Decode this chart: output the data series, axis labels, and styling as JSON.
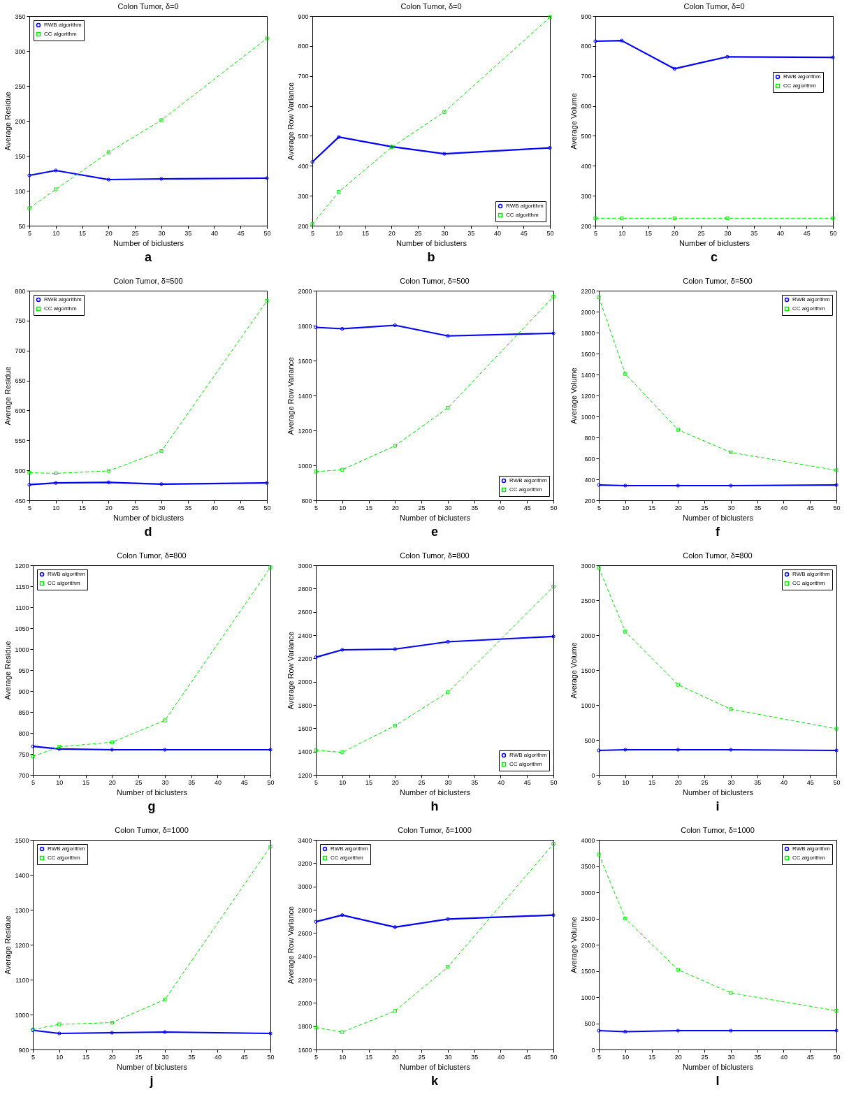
{
  "chart_data": [
    {
      "type": "line",
      "title": "Colon Tumor, δ=0",
      "xlabel": "Number of biclusters",
      "ylabel": "Average Residue",
      "annotations": [
        "a"
      ],
      "x": [
        5,
        10,
        20,
        30,
        50
      ],
      "xlim": [
        5,
        50
      ],
      "xticks": [
        5,
        10,
        15,
        20,
        25,
        30,
        35,
        40,
        45,
        50
      ],
      "ylim": [
        50,
        350
      ],
      "yticks": [
        50,
        100,
        150,
        200,
        250,
        300,
        350
      ],
      "legend": "top left",
      "series": [
        {
          "name": "RWB algorithm",
          "color": "#0000ff",
          "marker": "circle",
          "line_style": "solid",
          "values": [
            122,
            129,
            116,
            117,
            118
          ]
        },
        {
          "name": "CC algorithm",
          "color": "#00ee00",
          "marker": "square",
          "line_style": "dashed",
          "values": [
            75,
            102,
            155,
            201,
            318
          ]
        }
      ]
    },
    {
      "type": "line",
      "title": "Colon Tumor, δ=0",
      "xlabel": "Number of biclusters",
      "ylabel": "Average Row Variance",
      "annotations": [
        "b"
      ],
      "x": [
        5,
        10,
        20,
        30,
        50
      ],
      "xlim": [
        5,
        50
      ],
      "xticks": [
        5,
        10,
        15,
        20,
        25,
        30,
        35,
        40,
        45,
        50
      ],
      "ylim": [
        200,
        900
      ],
      "yticks": [
        200,
        300,
        400,
        500,
        600,
        700,
        800,
        900
      ],
      "legend": "bottom right",
      "series": [
        {
          "name": "RWB algorithm",
          "color": "#0000ff",
          "marker": "circle",
          "line_style": "solid",
          "values": [
            413,
            496,
            464,
            440,
            460
          ]
        },
        {
          "name": "CC algorithm",
          "color": "#00ee00",
          "marker": "square",
          "line_style": "dashed",
          "values": [
            205,
            313,
            462,
            580,
            896
          ]
        }
      ]
    },
    {
      "type": "line",
      "title": "Colon Tumor, δ=0",
      "xlabel": "Number of biclusters",
      "ylabel": "Average Volume",
      "annotations": [
        "c"
      ],
      "x": [
        5,
        10,
        20,
        30,
        50
      ],
      "xlim": [
        5,
        50
      ],
      "xticks": [
        5,
        10,
        15,
        20,
        25,
        30,
        35,
        40,
        45,
        50
      ],
      "ylim": [
        200,
        900
      ],
      "yticks": [
        200,
        300,
        400,
        500,
        600,
        700,
        800,
        900
      ],
      "legend": "right",
      "series": [
        {
          "name": "RWB algorithm",
          "color": "#0000ff",
          "marker": "circle",
          "line_style": "solid",
          "values": [
            816,
            818,
            724,
            764,
            762
          ]
        },
        {
          "name": "CC algorithm",
          "color": "#00ee00",
          "marker": "square",
          "line_style": "dashed",
          "values": [
            225,
            225,
            225,
            225,
            225
          ]
        }
      ]
    },
    {
      "type": "line",
      "title": "Colon Tumor, δ=500",
      "xlabel": "Number of biclusters",
      "ylabel": "Average Residue",
      "annotations": [
        "d"
      ],
      "x": [
        5,
        10,
        20,
        30,
        50
      ],
      "xlim": [
        5,
        50
      ],
      "xticks": [
        5,
        10,
        15,
        20,
        25,
        30,
        35,
        40,
        45,
        50
      ],
      "ylim": [
        450,
        800
      ],
      "yticks": [
        450,
        500,
        550,
        600,
        650,
        700,
        750,
        800
      ],
      "legend": "top left",
      "series": [
        {
          "name": "RWB algorithm",
          "color": "#0000ff",
          "marker": "circle",
          "line_style": "solid",
          "values": [
            476,
            479,
            480,
            477,
            479
          ]
        },
        {
          "name": "CC algorithm",
          "color": "#00ee00",
          "marker": "square",
          "line_style": "dashed",
          "values": [
            496,
            495,
            499,
            532,
            783
          ]
        }
      ]
    },
    {
      "type": "line",
      "title": "Colon Tumor, δ=500",
      "xlabel": "Number of biclusters",
      "ylabel": "Average Row Variance",
      "annotations": [
        "e"
      ],
      "x": [
        5,
        10,
        20,
        30,
        50
      ],
      "xlim": [
        5,
        50
      ],
      "xticks": [
        5,
        10,
        15,
        20,
        25,
        30,
        35,
        40,
        45,
        50
      ],
      "ylim": [
        800,
        2000
      ],
      "yticks": [
        800,
        1000,
        1200,
        1400,
        1600,
        1800,
        2000
      ],
      "legend": "bottom right",
      "series": [
        {
          "name": "RWB algorithm",
          "color": "#0000ff",
          "marker": "circle",
          "line_style": "solid",
          "values": [
            1790,
            1782,
            1802,
            1741,
            1756
          ]
        },
        {
          "name": "CC algorithm",
          "color": "#00ee00",
          "marker": "square",
          "line_style": "dashed",
          "values": [
            964,
            975,
            1112,
            1329,
            1966
          ]
        }
      ]
    },
    {
      "type": "line",
      "title": "Colon Tumor, δ=500",
      "xlabel": "Number of biclusters",
      "ylabel": "Average Volume",
      "annotations": [
        "f"
      ],
      "x": [
        5,
        10,
        20,
        30,
        50
      ],
      "xlim": [
        5,
        50
      ],
      "xticks": [
        5,
        10,
        15,
        20,
        25,
        30,
        35,
        40,
        45,
        50
      ],
      "ylim": [
        200,
        2200
      ],
      "yticks": [
        200,
        400,
        600,
        800,
        1000,
        1200,
        1400,
        1600,
        1800,
        2000,
        2200
      ],
      "legend": "top right",
      "series": [
        {
          "name": "RWB algorithm",
          "color": "#0000ff",
          "marker": "circle",
          "line_style": "solid",
          "values": [
            346,
            340,
            340,
            340,
            346
          ]
        },
        {
          "name": "CC algorithm",
          "color": "#00ee00",
          "marker": "square",
          "line_style": "dashed",
          "values": [
            2137,
            1406,
            873,
            657,
            486
          ]
        }
      ]
    },
    {
      "type": "line",
      "title": "Colon Tumor, δ=800",
      "xlabel": "Number of biclusters",
      "ylabel": "Average Residue",
      "annotations": [
        "g"
      ],
      "x": [
        5,
        10,
        20,
        30,
        50
      ],
      "xlim": [
        5,
        50
      ],
      "xticks": [
        5,
        10,
        15,
        20,
        25,
        30,
        35,
        40,
        45,
        50
      ],
      "ylim": [
        700,
        1200
      ],
      "yticks": [
        700,
        750,
        800,
        850,
        900,
        950,
        1000,
        1050,
        1100,
        1150,
        1200
      ],
      "legend": "top left",
      "series": [
        {
          "name": "RWB algorithm",
          "color": "#0000ff",
          "marker": "circle",
          "line_style": "solid",
          "values": [
            768,
            762,
            760,
            760,
            760
          ]
        },
        {
          "name": "CC algorithm",
          "color": "#00ee00",
          "marker": "square",
          "line_style": "dashed",
          "values": [
            744,
            767,
            778,
            830,
            1195
          ]
        }
      ]
    },
    {
      "type": "line",
      "title": "Colon Tumor, δ=800",
      "xlabel": "Number of biclusters",
      "ylabel": "Average Row Variance",
      "annotations": [
        "h"
      ],
      "x": [
        5,
        10,
        20,
        30,
        50
      ],
      "xlim": [
        5,
        50
      ],
      "xticks": [
        5,
        10,
        15,
        20,
        25,
        30,
        35,
        40,
        45,
        50
      ],
      "ylim": [
        1200,
        3000
      ],
      "yticks": [
        1200,
        1400,
        1600,
        1800,
        2000,
        2200,
        2400,
        2600,
        2800,
        3000
      ],
      "legend": "bottom right",
      "series": [
        {
          "name": "RWB algorithm",
          "color": "#0000ff",
          "marker": "circle",
          "line_style": "solid",
          "values": [
            2210,
            2274,
            2280,
            2343,
            2389
          ]
        },
        {
          "name": "CC algorithm",
          "color": "#00ee00",
          "marker": "square",
          "line_style": "dashed",
          "values": [
            1411,
            1394,
            1623,
            1909,
            2817
          ]
        }
      ]
    },
    {
      "type": "line",
      "title": "Colon Tumor, δ=800",
      "xlabel": "Number of biclusters",
      "ylabel": "Average Volume",
      "annotations": [
        "i"
      ],
      "x": [
        5,
        10,
        20,
        30,
        50
      ],
      "xlim": [
        5,
        50
      ],
      "xticks": [
        5,
        10,
        15,
        20,
        25,
        30,
        35,
        40,
        45,
        50
      ],
      "ylim": [
        0,
        3000
      ],
      "yticks": [
        0,
        500,
        1000,
        1500,
        2000,
        2500,
        3000
      ],
      "legend": "top right",
      "series": [
        {
          "name": "RWB algorithm",
          "color": "#0000ff",
          "marker": "circle",
          "line_style": "solid",
          "values": [
            350,
            360,
            360,
            360,
            350
          ]
        },
        {
          "name": "CC algorithm",
          "color": "#00ee00",
          "marker": "square",
          "line_style": "dashed",
          "values": [
            2960,
            2050,
            1290,
            940,
            660
          ]
        }
      ]
    },
    {
      "type": "line",
      "title": "Colon Tumor, δ=1000",
      "xlabel": "Number of biclusters",
      "ylabel": "Average Residue",
      "annotations": [
        "j"
      ],
      "x": [
        5,
        10,
        20,
        30,
        50
      ],
      "xlim": [
        5,
        50
      ],
      "xticks": [
        5,
        10,
        15,
        20,
        25,
        30,
        35,
        40,
        45,
        50
      ],
      "ylim": [
        900,
        1500
      ],
      "yticks": [
        900,
        1000,
        1100,
        1200,
        1300,
        1400,
        1500
      ],
      "legend": "top left",
      "series": [
        {
          "name": "RWB algorithm",
          "color": "#0000ff",
          "marker": "circle",
          "line_style": "solid",
          "values": [
            955,
            946,
            948,
            950,
            946
          ]
        },
        {
          "name": "CC algorithm",
          "color": "#00ee00",
          "marker": "square",
          "line_style": "dashed",
          "values": [
            957,
            972,
            977,
            1043,
            1481
          ]
        }
      ]
    },
    {
      "type": "line",
      "title": "Colon Tumor, δ=1000",
      "xlabel": "Number of biclusters",
      "ylabel": "Average Row Variance",
      "annotations": [
        "k"
      ],
      "x": [
        5,
        10,
        20,
        30,
        50
      ],
      "xlim": [
        5,
        50
      ],
      "xticks": [
        5,
        10,
        15,
        20,
        25,
        30,
        35,
        40,
        45,
        50
      ],
      "ylim": [
        1600,
        3400
      ],
      "yticks": [
        1600,
        1800,
        2000,
        2200,
        2400,
        2600,
        2800,
        3000,
        3200,
        3400
      ],
      "legend": "top left",
      "series": [
        {
          "name": "RWB algorithm",
          "color": "#0000ff",
          "marker": "circle",
          "line_style": "solid",
          "values": [
            2697,
            2754,
            2651,
            2720,
            2754
          ]
        },
        {
          "name": "CC algorithm",
          "color": "#00ee00",
          "marker": "square",
          "line_style": "dashed",
          "values": [
            1789,
            1749,
            1931,
            2309,
            3366
          ]
        }
      ]
    },
    {
      "type": "line",
      "title": "Colon Tumor, δ=1000",
      "xlabel": "Number of biclusters",
      "ylabel": "Average Volume",
      "annotations": [
        "l"
      ],
      "x": [
        5,
        10,
        20,
        30,
        50
      ],
      "xlim": [
        5,
        50
      ],
      "xticks": [
        5,
        10,
        15,
        20,
        25,
        30,
        35,
        40,
        45,
        50
      ],
      "ylim": [
        0,
        4000
      ],
      "yticks": [
        0,
        500,
        1000,
        1500,
        2000,
        2500,
        3000,
        3500,
        4000
      ],
      "legend": "top right",
      "series": [
        {
          "name": "RWB algorithm",
          "color": "#0000ff",
          "marker": "circle",
          "line_style": "solid",
          "values": [
            360,
            340,
            360,
            360,
            360
          ]
        },
        {
          "name": "CC algorithm",
          "color": "#00ee00",
          "marker": "square",
          "line_style": "dashed",
          "values": [
            3720,
            2500,
            1520,
            1080,
            740
          ]
        }
      ]
    }
  ]
}
